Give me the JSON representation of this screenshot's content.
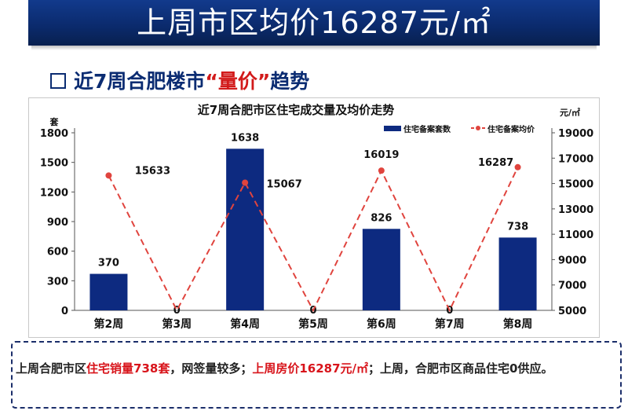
{
  "banner": {
    "title": "上周市区均价16287元/㎡"
  },
  "subheading": {
    "prefix": "近7周合肥楼市",
    "quote_open": "“",
    "highlight": "量价",
    "quote_close": "”",
    "suffix": "趋势"
  },
  "chart_data": {
    "type": "bar+line",
    "title": "近7周合肥市区住宅成交量及均价走势",
    "categories": [
      "第2周",
      "第3周",
      "第4周",
      "第5周",
      "第6周",
      "第7周",
      "第8周"
    ],
    "y_left": {
      "unit": "套",
      "ticks": [
        0,
        300,
        600,
        900,
        1200,
        1500,
        1800
      ],
      "range": [
        0,
        1800
      ]
    },
    "y_right": {
      "unit": "元/㎡",
      "ticks": [
        5000,
        7000,
        9000,
        11000,
        13000,
        15000,
        17000,
        19000
      ],
      "range": [
        5000,
        19000
      ]
    },
    "series": [
      {
        "name": "住宅备案套数",
        "type": "bar",
        "axis": "left",
        "color": "#0d2a80",
        "values": [
          370,
          0,
          1638,
          0,
          826,
          0,
          738
        ]
      },
      {
        "name": "住宅备案均价",
        "type": "line",
        "axis": "right",
        "color": "#e0443e",
        "style": "dashed",
        "values": [
          15633,
          5000,
          15067,
          5000,
          16019,
          5000,
          16287
        ]
      }
    ],
    "bar_labels": [
      "370",
      "0",
      "1638",
      "0",
      "826",
      "0",
      "738"
    ],
    "line_labels": [
      "15633",
      "",
      "15067",
      "",
      "16019",
      "",
      "16287"
    ]
  },
  "summary": {
    "part1": "上周合肥市区",
    "part2_red": "住宅销量738套",
    "part3": "，网签量较多；",
    "part4_red": "上周房价16287元/㎡",
    "part5": "；上周，合肥市区商品住宅0供应。"
  }
}
